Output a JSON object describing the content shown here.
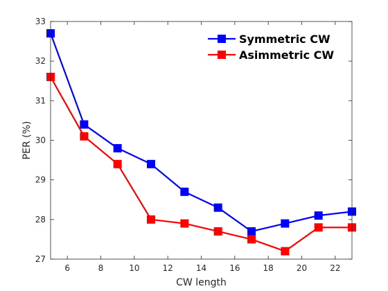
{
  "chart_data": {
    "type": "line",
    "title": "",
    "xlabel": "CW length",
    "ylabel": "PER (%)",
    "xlim": [
      5,
      23
    ],
    "ylim": [
      27,
      33
    ],
    "xticks": [
      6,
      8,
      10,
      12,
      14,
      16,
      18,
      20,
      22
    ],
    "yticks": [
      27,
      28,
      29,
      30,
      31,
      32,
      33
    ],
    "grid": false,
    "legend_position": "top-right",
    "x": [
      5,
      7,
      9,
      11,
      13,
      15,
      17,
      19,
      21,
      23
    ],
    "series": [
      {
        "name": "Symmetric CW",
        "color": "#0000ff",
        "marker": "square",
        "values": [
          32.7,
          30.4,
          29.8,
          29.4,
          28.7,
          28.3,
          27.7,
          27.9,
          28.1,
          28.2
        ]
      },
      {
        "name": "Asimmetric CW",
        "color": "#ff0000",
        "marker": "square",
        "values": [
          31.6,
          30.1,
          29.4,
          28.0,
          27.9,
          27.7,
          27.5,
          27.2,
          27.8,
          27.8
        ]
      }
    ]
  }
}
